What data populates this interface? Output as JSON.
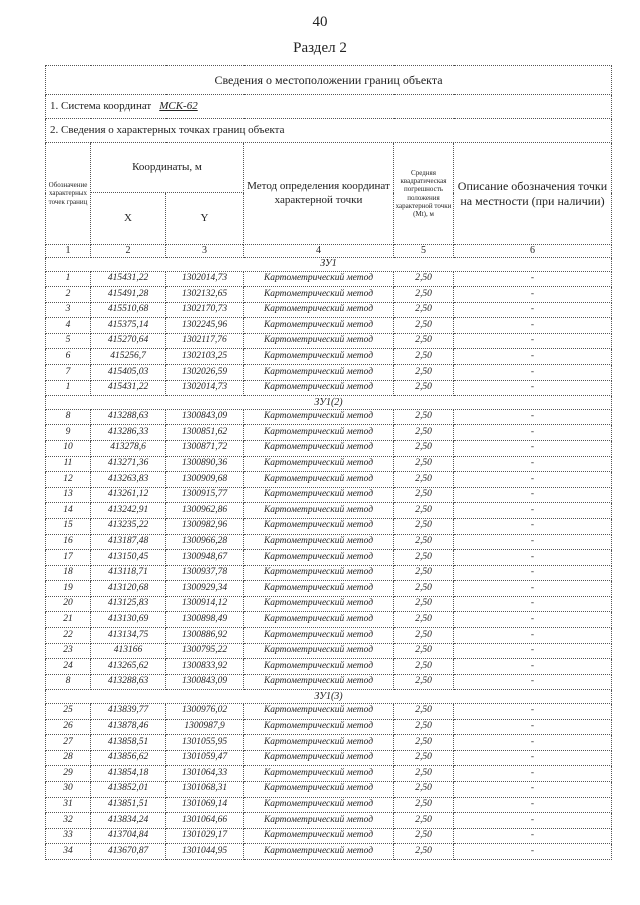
{
  "page_number": "40",
  "section_title": "Раздел 2",
  "table_title": "Сведения о местоположении границ объекта",
  "coord_system_label": "1. Система координат",
  "coord_system_value": "МСК-62",
  "points_label": "2. Сведения о характерных точках границ объекта",
  "headers": {
    "col1": "Обозначение характерных точек границ",
    "coords": "Координаты, м",
    "x": "X",
    "y": "Y",
    "method": "Метод определения координат характерной точки",
    "error": "Средняя квадратическая погрешность положения характерной точки (Mt), м",
    "desc": "Описание обозначения точки на местности (при наличии)",
    "numbers": [
      "1",
      "2",
      "3",
      "4",
      "5",
      "6"
    ]
  },
  "groups": [
    {
      "name": "ЗУ1",
      "rows": [
        [
          "1",
          "415431,22",
          "1302014,73"
        ],
        [
          "2",
          "415491,28",
          "1302132,65"
        ],
        [
          "3",
          "415510,68",
          "1302170,73"
        ],
        [
          "4",
          "415375,14",
          "1302245,96"
        ],
        [
          "5",
          "415270,64",
          "1302117,76"
        ],
        [
          "6",
          "415256,7",
          "1302103,25"
        ],
        [
          "7",
          "415405,03",
          "1302026,59"
        ],
        [
          "1",
          "415431,22",
          "1302014,73"
        ]
      ]
    },
    {
      "name": "ЗУ1(2)",
      "rows": [
        [
          "8",
          "413288,63",
          "1300843,09"
        ],
        [
          "9",
          "413286,33",
          "1300851,62"
        ],
        [
          "10",
          "413278,6",
          "1300871,72"
        ],
        [
          "11",
          "413271,36",
          "1300890,36"
        ],
        [
          "12",
          "413263,83",
          "1300909,68"
        ],
        [
          "13",
          "413261,12",
          "1300915,77"
        ],
        [
          "14",
          "413242,91",
          "1300962,86"
        ],
        [
          "15",
          "413235,22",
          "1300982,96"
        ],
        [
          "16",
          "413187,48",
          "1300966,28"
        ],
        [
          "17",
          "413150,45",
          "1300948,67"
        ],
        [
          "18",
          "413118,71",
          "1300937,78"
        ],
        [
          "19",
          "413120,68",
          "1300929,34"
        ],
        [
          "20",
          "413125,83",
          "1300914,12"
        ],
        [
          "21",
          "413130,69",
          "1300898,49"
        ],
        [
          "22",
          "413134,75",
          "1300886,92"
        ],
        [
          "23",
          "413166",
          "1300795,22"
        ],
        [
          "24",
          "413265,62",
          "1300833,92"
        ],
        [
          "8",
          "413288,63",
          "1300843,09"
        ]
      ]
    },
    {
      "name": "ЗУ1(3)",
      "rows": [
        [
          "25",
          "413839,77",
          "1300976,02"
        ],
        [
          "26",
          "413878,46",
          "1300987,9"
        ],
        [
          "27",
          "413858,51",
          "1301055,95"
        ],
        [
          "28",
          "413856,62",
          "1301059,47"
        ],
        [
          "29",
          "413854,18",
          "1301064,33"
        ],
        [
          "30",
          "413852,01",
          "1301068,31"
        ],
        [
          "31",
          "413851,51",
          "1301069,14"
        ],
        [
          "32",
          "413834,24",
          "1301064,66"
        ],
        [
          "33",
          "413704,84",
          "1301029,17"
        ],
        [
          "34",
          "413670,87",
          "1301044,95"
        ]
      ]
    }
  ],
  "method_value": "Картометрический метод",
  "error_value": "2,50",
  "desc_value": "-"
}
